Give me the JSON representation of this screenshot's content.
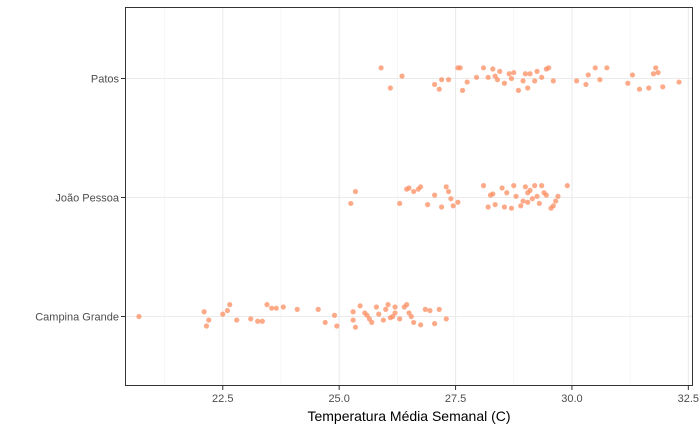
{
  "chart_data": {
    "type": "scatter",
    "title": "",
    "xlabel": "Temperatura Média Semanal (C)",
    "ylabel": "",
    "xlim": [
      20.4,
      32.6
    ],
    "x_ticks": [
      22.5,
      25.0,
      27.5,
      30.0,
      32.5
    ],
    "x_tick_labels": [
      "22.5",
      "25.0",
      "27.5",
      "30.0",
      "32.5"
    ],
    "categories": [
      "Campina Grande",
      "João Pessoa",
      "Patos"
    ],
    "grid": true,
    "point_color": "#fc8d62",
    "series": [
      {
        "category": "Campina Grande",
        "points": [
          [
            20.7,
            -0.0
          ],
          [
            22.1,
            0.04
          ],
          [
            22.2,
            -0.03
          ],
          [
            22.15,
            -0.08
          ],
          [
            22.5,
            0.02
          ],
          [
            22.6,
            0.05
          ],
          [
            22.65,
            0.1
          ],
          [
            22.8,
            -0.03
          ],
          [
            23.1,
            -0.02
          ],
          [
            23.25,
            -0.04
          ],
          [
            23.35,
            -0.04
          ],
          [
            23.45,
            0.1
          ],
          [
            23.55,
            0.07
          ],
          [
            23.65,
            0.07
          ],
          [
            23.8,
            0.08
          ],
          [
            24.1,
            0.06
          ],
          [
            24.55,
            0.06
          ],
          [
            24.7,
            -0.05
          ],
          [
            24.9,
            0.01
          ],
          [
            24.95,
            -0.08
          ],
          [
            25.3,
            0.04
          ],
          [
            25.3,
            -0.03
          ],
          [
            25.35,
            -0.09
          ],
          [
            25.45,
            0.09
          ],
          [
            25.55,
            0.03
          ],
          [
            25.65,
            -0.02
          ],
          [
            25.7,
            -0.05
          ],
          [
            25.8,
            0.08
          ],
          [
            25.85,
            0.02
          ],
          [
            25.95,
            -0.03
          ],
          [
            26.0,
            0.06
          ],
          [
            26.05,
            0.1
          ],
          [
            26.1,
            -0.01
          ],
          [
            26.2,
            0.03
          ],
          [
            26.2,
            0.08
          ],
          [
            26.3,
            -0.02
          ],
          [
            26.4,
            0.08
          ],
          [
            26.45,
            0.1
          ],
          [
            26.55,
            0.0
          ],
          [
            26.6,
            -0.05
          ],
          [
            26.75,
            -0.07
          ],
          [
            26.85,
            0.06
          ],
          [
            26.95,
            0.05
          ],
          [
            27.05,
            -0.06
          ],
          [
            27.15,
            0.06
          ],
          [
            27.3,
            -0.02
          ],
          [
            26.15,
            0.0
          ],
          [
            25.6,
            0.01
          ],
          [
            26.5,
            0.03
          ]
        ]
      },
      {
        "category": "João Pessoa",
        "points": [
          [
            25.25,
            -0.05
          ],
          [
            25.35,
            0.05
          ],
          [
            26.3,
            -0.05
          ],
          [
            26.45,
            0.07
          ],
          [
            26.5,
            0.08
          ],
          [
            26.6,
            0.05
          ],
          [
            26.7,
            0.07
          ],
          [
            26.75,
            0.09
          ],
          [
            26.9,
            -0.06
          ],
          [
            27.05,
            0.02
          ],
          [
            27.2,
            -0.08
          ],
          [
            27.3,
            0.09
          ],
          [
            27.35,
            0.05
          ],
          [
            27.4,
            -0.01
          ],
          [
            27.45,
            -0.07
          ],
          [
            27.55,
            -0.04
          ],
          [
            28.1,
            0.1
          ],
          [
            28.2,
            -0.08
          ],
          [
            28.3,
            0.03
          ],
          [
            28.35,
            -0.06
          ],
          [
            28.5,
            0.08
          ],
          [
            28.55,
            -0.08
          ],
          [
            28.6,
            0.04
          ],
          [
            28.7,
            -0.09
          ],
          [
            28.75,
            0.1
          ],
          [
            28.8,
            0.01
          ],
          [
            28.9,
            -0.07
          ],
          [
            28.95,
            -0.03
          ],
          [
            29.0,
            0.09
          ],
          [
            29.05,
            -0.04
          ],
          [
            29.1,
            0.06
          ],
          [
            29.15,
            -0.01
          ],
          [
            29.2,
            0.1
          ],
          [
            29.25,
            0.01
          ],
          [
            29.3,
            -0.05
          ],
          [
            29.35,
            0.1
          ],
          [
            29.4,
            0.04
          ],
          [
            29.45,
            0.02
          ],
          [
            29.55,
            -0.09
          ],
          [
            29.6,
            -0.07
          ],
          [
            29.65,
            -0.03
          ],
          [
            29.7,
            0.01
          ],
          [
            29.9,
            0.1
          ],
          [
            28.25,
            0.02
          ],
          [
            29.05,
            0.04
          ]
        ]
      },
      {
        "category": "Patos",
        "points": [
          [
            25.9,
            0.09
          ],
          [
            26.1,
            -0.08
          ],
          [
            26.35,
            0.02
          ],
          [
            27.05,
            -0.05
          ],
          [
            27.15,
            -0.09
          ],
          [
            27.2,
            -0.01
          ],
          [
            27.35,
            -0.01
          ],
          [
            27.55,
            0.09
          ],
          [
            27.6,
            0.09
          ],
          [
            27.65,
            -0.1
          ],
          [
            27.75,
            -0.03
          ],
          [
            27.95,
            0.01
          ],
          [
            28.1,
            0.09
          ],
          [
            28.2,
            0.01
          ],
          [
            28.3,
            0.08
          ],
          [
            28.35,
            0.02
          ],
          [
            28.4,
            -0.01
          ],
          [
            28.45,
            0.06
          ],
          [
            28.55,
            -0.04
          ],
          [
            28.65,
            0.04
          ],
          [
            28.7,
            0.0
          ],
          [
            28.75,
            0.05
          ],
          [
            28.85,
            -0.1
          ],
          [
            28.95,
            -0.02
          ],
          [
            29.05,
            -0.08
          ],
          [
            29.1,
            0.04
          ],
          [
            29.2,
            -0.02
          ],
          [
            29.25,
            0.06
          ],
          [
            29.35,
            0.01
          ],
          [
            29.45,
            0.08
          ],
          [
            29.5,
            0.09
          ],
          [
            29.6,
            -0.02
          ],
          [
            30.1,
            -0.02
          ],
          [
            30.3,
            -0.05
          ],
          [
            30.35,
            0.03
          ],
          [
            30.5,
            0.09
          ],
          [
            30.6,
            -0.01
          ],
          [
            30.75,
            0.09
          ],
          [
            31.2,
            -0.04
          ],
          [
            31.3,
            0.03
          ],
          [
            31.45,
            -0.09
          ],
          [
            31.65,
            -0.08
          ],
          [
            31.75,
            0.04
          ],
          [
            31.8,
            0.09
          ],
          [
            31.85,
            0.05
          ],
          [
            31.95,
            -0.07
          ],
          [
            32.3,
            -0.03
          ],
          [
            29.0,
            0.04
          ]
        ]
      }
    ]
  }
}
